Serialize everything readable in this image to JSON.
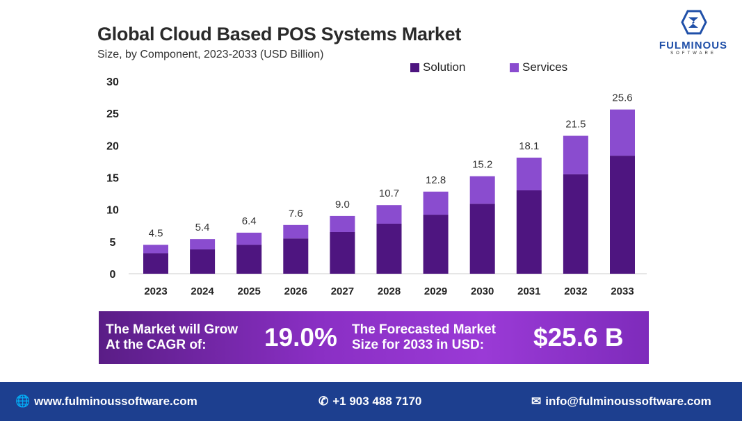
{
  "chart_data": {
    "type": "bar",
    "stacked": true,
    "title": "Global Cloud Based POS Systems Market",
    "subtitle": "Size, by Component, 2023-2033 (USD Billion)",
    "categories": [
      "2023",
      "2024",
      "2025",
      "2026",
      "2027",
      "2028",
      "2029",
      "2030",
      "2031",
      "2032",
      "2033"
    ],
    "series": [
      {
        "name": "Solution",
        "color": "#4e1580",
        "values": [
          3.2,
          3.8,
          4.5,
          5.5,
          6.5,
          7.8,
          9.2,
          10.9,
          13.0,
          15.5,
          18.4
        ]
      },
      {
        "name": "Services",
        "color": "#8a4ccf",
        "values": [
          1.3,
          1.6,
          1.9,
          2.1,
          2.5,
          2.9,
          3.6,
          4.3,
          5.1,
          6.0,
          7.2
        ]
      }
    ],
    "totals": [
      "4.5",
      "5.4",
      "6.4",
      "7.6",
      "9.0",
      "10.7",
      "12.8",
      "15.2",
      "18.1",
      "21.5",
      "25.6"
    ],
    "yticks": [
      "0",
      "5",
      "10",
      "15",
      "20",
      "25",
      "30"
    ],
    "ylim": [
      0,
      30
    ],
    "grid": false,
    "legend": "top-right"
  },
  "banner": {
    "cagr_label_1": "The Market will Grow",
    "cagr_label_2": "At the CAGR of:",
    "cagr_value": "19.0%",
    "size_label_1": "The Forecasted Market",
    "size_label_2": "Size for 2033 in USD:",
    "size_value": "$25.6 B"
  },
  "logo": {
    "name": "FULMINOUS",
    "sub": "SOFTWARE"
  },
  "footer": {
    "website": "www.fulminoussoftware.com",
    "phone": "+1 903 488 7170",
    "email": "info@fulminoussoftware.com"
  }
}
